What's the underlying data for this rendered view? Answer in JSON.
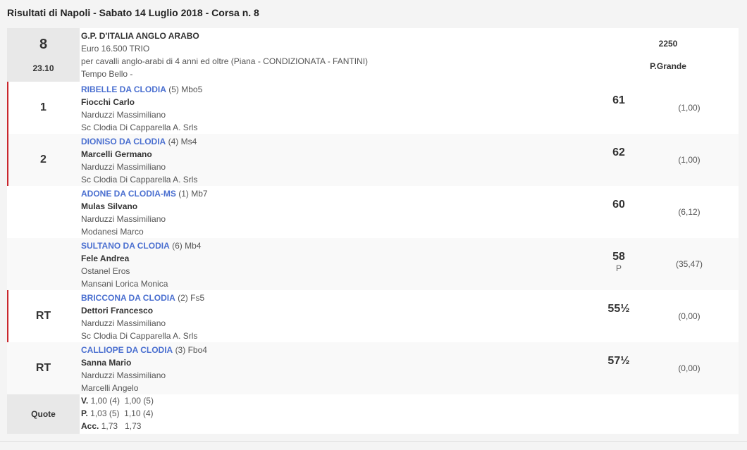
{
  "title": "Risultati di Napoli - Sabato 14 Luglio 2018 - Corsa n. 8",
  "race": {
    "number": "8",
    "time": "23.10",
    "name": "G.P. D'ITALIA ANGLO ARABO",
    "prize": "Euro 16.500 TRIO",
    "conditions": "per cavalli anglo-arabi di 4 anni ed oltre (Piana -  CONDIZIONATA  - FANTINI)",
    "weather": "Tempo Bello -",
    "distance": "2250",
    "track": "P.Grande"
  },
  "runners": [
    {
      "pos": "1",
      "horse": "RIBELLE DA CLODIA",
      "info": "(5) Mbo5",
      "jockey": "Fiocchi Carlo",
      "trainer": "Narduzzi Massimiliano",
      "owner": "Sc Clodia Di Capparella A. Srls",
      "weight": "61",
      "note": "",
      "odds": "(1,00)",
      "marked": true
    },
    {
      "pos": "2",
      "horse": "DIONISO DA CLODIA",
      "info": "(4) Ms4",
      "jockey": "Marcelli Germano",
      "trainer": "Narduzzi Massimiliano",
      "owner": "Sc Clodia Di Capparella A. Srls",
      "weight": "62",
      "note": "",
      "odds": "(1,00)",
      "marked": true
    },
    {
      "pos": "",
      "horse": "ADONE DA CLODIA-MS",
      "info": "(1) Mb7",
      "jockey": "Mulas Silvano",
      "trainer": "Narduzzi Massimiliano",
      "owner": "Modanesi Marco",
      "weight": "60",
      "note": "",
      "odds": "(6,12)",
      "marked": false
    },
    {
      "pos": "",
      "horse": "SULTANO DA CLODIA",
      "info": "(6) Mb4",
      "jockey": "Fele Andrea",
      "trainer": "Ostanel Eros",
      "owner": "Mansani Lorica Monica",
      "weight": "58",
      "note": "P",
      "odds": "(35,47)",
      "marked": false
    },
    {
      "pos": "RT",
      "horse": "BRICCONA DA CLODIA",
      "info": "(2) Fs5",
      "jockey": "Dettori Francesco",
      "trainer": "Narduzzi Massimiliano",
      "owner": "Sc Clodia Di Capparella A. Srls",
      "weight": "55½",
      "note": "",
      "odds": "(0,00)",
      "marked": true
    },
    {
      "pos": "RT",
      "horse": "CALLIOPE DA CLODIA",
      "info": "(3) Fbo4",
      "jockey": "Sanna Mario",
      "trainer": "Narduzzi Massimiliano",
      "owner": "Marcelli Angelo",
      "weight": "57½",
      "note": "",
      "odds": "(0,00)",
      "marked": false
    }
  ],
  "quote": {
    "label": "Quote",
    "lines": [
      {
        "key": "V.",
        "val": "1,00 (4)  1,00 (5)"
      },
      {
        "key": "P.",
        "val": "1,03 (5)  1,10 (4)"
      },
      {
        "key": "Acc.",
        "val": "1,73   1,73"
      }
    ]
  },
  "colors": {
    "horse_link": "#4a6fd0",
    "marker": "#c9262c"
  }
}
